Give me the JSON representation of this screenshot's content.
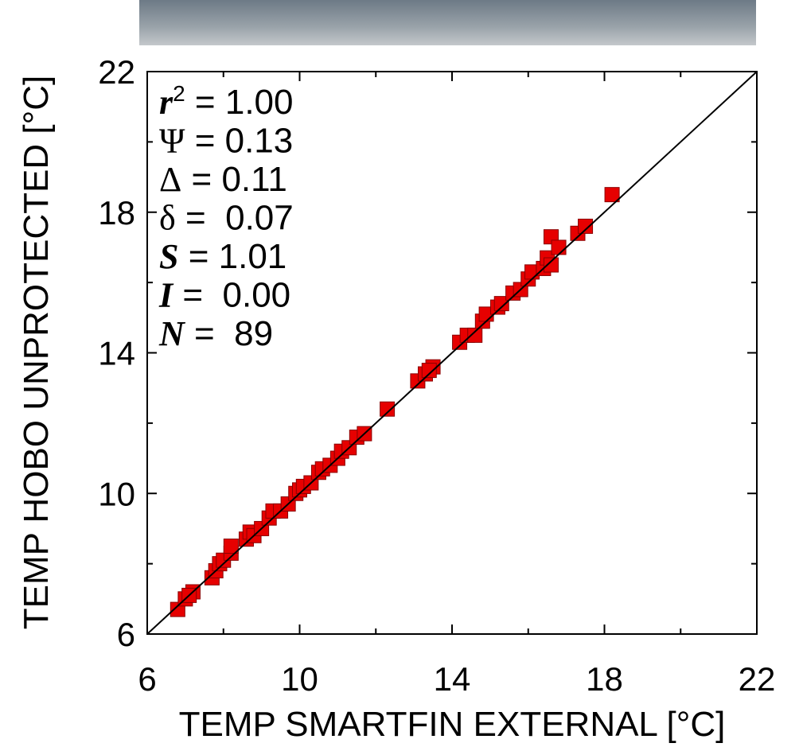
{
  "chart_data": {
    "type": "scatter",
    "xlabel": "TEMP SMARTFIN EXTERNAL [°C]",
    "ylabel": "TEMP HOBO UNPROTECTED [°C]",
    "xlim": [
      6,
      22
    ],
    "ylim": [
      6,
      22
    ],
    "xticks": [
      6,
      10,
      14,
      18,
      22
    ],
    "yticks": [
      6,
      10,
      14,
      18,
      22
    ],
    "xminorticks": [
      8,
      12,
      16,
      20
    ],
    "yminorticks": [
      8,
      12,
      16,
      20
    ],
    "one_to_one_line": true,
    "color": "#e60000",
    "annotations": [
      {
        "symbol": "r",
        "sup": "2",
        "text": " = 1.00",
        "style": "bold-italic"
      },
      {
        "symbol": "Ψ",
        "text": " = 0.13",
        "style": "greek"
      },
      {
        "symbol": "Δ",
        "text": " = 0.11",
        "style": "greek"
      },
      {
        "symbol": "δ",
        "text": " =  0.07",
        "style": "greek"
      },
      {
        "symbol": "S",
        "text": " = 1.01",
        "style": "bold-italic"
      },
      {
        "symbol": "I",
        "text": " =  0.00",
        "style": "bold-italic"
      },
      {
        "symbol": "N",
        "text": " =  89",
        "style": "bold-italic"
      }
    ],
    "x": [
      6.8,
      7.0,
      7.2,
      7.1,
      7.7,
      7.8,
      7.9,
      8.0,
      8.2,
      8.2,
      8.6,
      8.7,
      8.8,
      9.0,
      9.2,
      9.3,
      9.5,
      9.7,
      9.9,
      10.0,
      10.1,
      10.3,
      10.5,
      10.6,
      10.8,
      11.0,
      11.1,
      11.3,
      11.5,
      11.7,
      12.3,
      13.1,
      13.3,
      13.5,
      13.4,
      14.2,
      14.4,
      14.6,
      14.8,
      14.9,
      15.2,
      15.3,
      15.6,
      15.8,
      16.0,
      16.1,
      16.4,
      16.5,
      16.6,
      16.6,
      16.8,
      17.3,
      17.5,
      18.2
    ],
    "y": [
      6.7,
      7.0,
      7.2,
      7.1,
      7.6,
      7.8,
      8.0,
      8.1,
      8.3,
      8.5,
      8.7,
      8.9,
      8.8,
      9.0,
      9.3,
      9.5,
      9.5,
      9.7,
      10.0,
      10.1,
      10.2,
      10.3,
      10.6,
      10.7,
      10.8,
      11.0,
      11.2,
      11.3,
      11.6,
      11.7,
      12.4,
      13.2,
      13.4,
      13.6,
      13.5,
      14.3,
      14.5,
      14.5,
      14.9,
      15.1,
      15.3,
      15.4,
      15.7,
      15.8,
      16.1,
      16.3,
      16.4,
      16.7,
      17.3,
      16.5,
      17.0,
      17.4,
      17.6,
      18.5
    ]
  }
}
